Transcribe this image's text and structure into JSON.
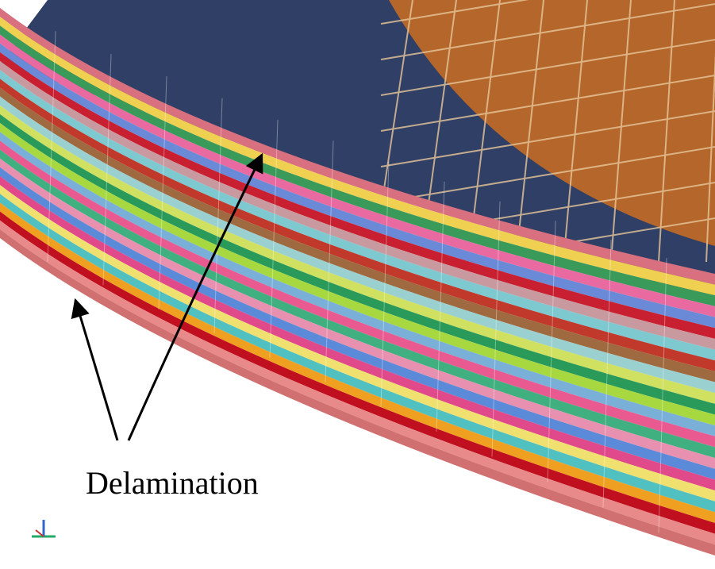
{
  "annotation": {
    "label": "Delamination"
  }
}
